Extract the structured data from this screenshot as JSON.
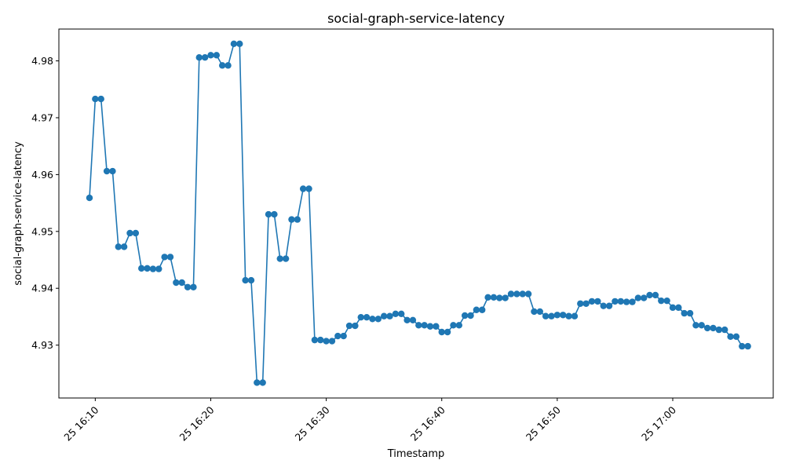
{
  "chart_data": {
    "type": "line",
    "title": "social-graph-service-latency",
    "xlabel": "Timestamp",
    "ylabel": "social-graph-service-latency",
    "x_tick_labels": [
      "25 16:10",
      "25 16:20",
      "25 16:30",
      "25 16:40",
      "25 16:50",
      "25 17:00"
    ],
    "x_tick_times": [
      "16:10",
      "16:20",
      "16:30",
      "16:40",
      "16:50",
      "17:00"
    ],
    "x_range": [
      "16:06:51",
      "17:08:42"
    ],
    "y_tick_labels": [
      "4.93",
      "4.94",
      "4.95",
      "4.96",
      "4.97",
      "4.98"
    ],
    "y_ticks": [
      4.93,
      4.94,
      4.95,
      4.96,
      4.97,
      4.98
    ],
    "ylim": [
      4.9207,
      4.9856
    ],
    "grid": false,
    "legend": "none",
    "series_color": "#1f77b4",
    "marker": "circle",
    "points": [
      [
        "16:09:30",
        4.9559
      ],
      [
        "16:10:00",
        4.9733
      ],
      [
        "16:10:30",
        4.9733
      ],
      [
        "16:11:00",
        4.9606
      ],
      [
        "16:11:30",
        4.9606
      ],
      [
        "16:12:00",
        4.9473
      ],
      [
        "16:12:30",
        4.9473
      ],
      [
        "16:13:00",
        4.9497
      ],
      [
        "16:13:30",
        4.9497
      ],
      [
        "16:14:00",
        4.9435
      ],
      [
        "16:14:30",
        4.9435
      ],
      [
        "16:15:00",
        4.9434
      ],
      [
        "16:15:30",
        4.9434
      ],
      [
        "16:16:00",
        4.9455
      ],
      [
        "16:16:30",
        4.9455
      ],
      [
        "16:17:00",
        4.941
      ],
      [
        "16:17:30",
        4.941
      ],
      [
        "16:18:00",
        4.9402
      ],
      [
        "16:18:30",
        4.9402
      ],
      [
        "16:19:00",
        4.9806
      ],
      [
        "16:19:30",
        4.9806
      ],
      [
        "16:20:00",
        4.981
      ],
      [
        "16:20:30",
        4.981
      ],
      [
        "16:21:00",
        4.9792
      ],
      [
        "16:21:30",
        4.9792
      ],
      [
        "16:22:00",
        4.983
      ],
      [
        "16:22:30",
        4.983
      ],
      [
        "16:23:00",
        4.9414
      ],
      [
        "16:23:30",
        4.9414
      ],
      [
        "16:24:00",
        4.9234
      ],
      [
        "16:24:30",
        4.9234
      ],
      [
        "16:25:00",
        4.953
      ],
      [
        "16:25:30",
        4.953
      ],
      [
        "16:26:00",
        4.9452
      ],
      [
        "16:26:30",
        4.9452
      ],
      [
        "16:27:00",
        4.9521
      ],
      [
        "16:27:30",
        4.9521
      ],
      [
        "16:28:00",
        4.9575
      ],
      [
        "16:28:30",
        4.9575
      ],
      [
        "16:29:00",
        4.9309
      ],
      [
        "16:29:30",
        4.9309
      ],
      [
        "16:30:00",
        4.9307
      ],
      [
        "16:30:30",
        4.9307
      ],
      [
        "16:31:00",
        4.9316
      ],
      [
        "16:31:30",
        4.9316
      ],
      [
        "16:32:00",
        4.9334
      ],
      [
        "16:32:30",
        4.9334
      ],
      [
        "16:33:00",
        4.9349
      ],
      [
        "16:33:30",
        4.9349
      ],
      [
        "16:34:00",
        4.9346
      ],
      [
        "16:34:30",
        4.9346
      ],
      [
        "16:35:00",
        4.9351
      ],
      [
        "16:35:30",
        4.9351
      ],
      [
        "16:36:00",
        4.9355
      ],
      [
        "16:36:30",
        4.9355
      ],
      [
        "16:37:00",
        4.9344
      ],
      [
        "16:37:30",
        4.9344
      ],
      [
        "16:38:00",
        4.9335
      ],
      [
        "16:38:30",
        4.9335
      ],
      [
        "16:39:00",
        4.9333
      ],
      [
        "16:39:30",
        4.9333
      ],
      [
        "16:40:00",
        4.9323
      ],
      [
        "16:40:30",
        4.9323
      ],
      [
        "16:41:00",
        4.9335
      ],
      [
        "16:41:30",
        4.9335
      ],
      [
        "16:42:00",
        4.9352
      ],
      [
        "16:42:30",
        4.9352
      ],
      [
        "16:43:00",
        4.9362
      ],
      [
        "16:43:30",
        4.9362
      ],
      [
        "16:44:00",
        4.9384
      ],
      [
        "16:44:30",
        4.9384
      ],
      [
        "16:45:00",
        4.9383
      ],
      [
        "16:45:30",
        4.9383
      ],
      [
        "16:46:00",
        4.939
      ],
      [
        "16:46:30",
        4.939
      ],
      [
        "16:47:00",
        4.939
      ],
      [
        "16:47:30",
        4.939
      ],
      [
        "16:48:00",
        4.9359
      ],
      [
        "16:48:30",
        4.9359
      ],
      [
        "16:49:00",
        4.9351
      ],
      [
        "16:49:30",
        4.9351
      ],
      [
        "16:50:00",
        4.9353
      ],
      [
        "16:50:30",
        4.9353
      ],
      [
        "16:51:00",
        4.9351
      ],
      [
        "16:51:30",
        4.9351
      ],
      [
        "16:52:00",
        4.9373
      ],
      [
        "16:52:30",
        4.9373
      ],
      [
        "16:53:00",
        4.9377
      ],
      [
        "16:53:30",
        4.9377
      ],
      [
        "16:54:00",
        4.9369
      ],
      [
        "16:54:30",
        4.9369
      ],
      [
        "16:55:00",
        4.9377
      ],
      [
        "16:55:30",
        4.9377
      ],
      [
        "16:56:00",
        4.9376
      ],
      [
        "16:56:30",
        4.9376
      ],
      [
        "16:57:00",
        4.9383
      ],
      [
        "16:57:30",
        4.9383
      ],
      [
        "16:58:00",
        4.9388
      ],
      [
        "16:58:30",
        4.9388
      ],
      [
        "16:59:00",
        4.9378
      ],
      [
        "16:59:30",
        4.9378
      ],
      [
        "17:00:00",
        4.9366
      ],
      [
        "17:00:30",
        4.9366
      ],
      [
        "17:01:00",
        4.9356
      ],
      [
        "17:01:30",
        4.9356
      ],
      [
        "17:02:00",
        4.9335
      ],
      [
        "17:02:30",
        4.9335
      ],
      [
        "17:03:00",
        4.933
      ],
      [
        "17:03:30",
        4.933
      ],
      [
        "17:04:00",
        4.9327
      ],
      [
        "17:04:30",
        4.9327
      ],
      [
        "17:05:00",
        4.9315
      ],
      [
        "17:05:30",
        4.9315
      ],
      [
        "17:06:00",
        4.9298
      ],
      [
        "17:06:30",
        4.9298
      ]
    ]
  }
}
